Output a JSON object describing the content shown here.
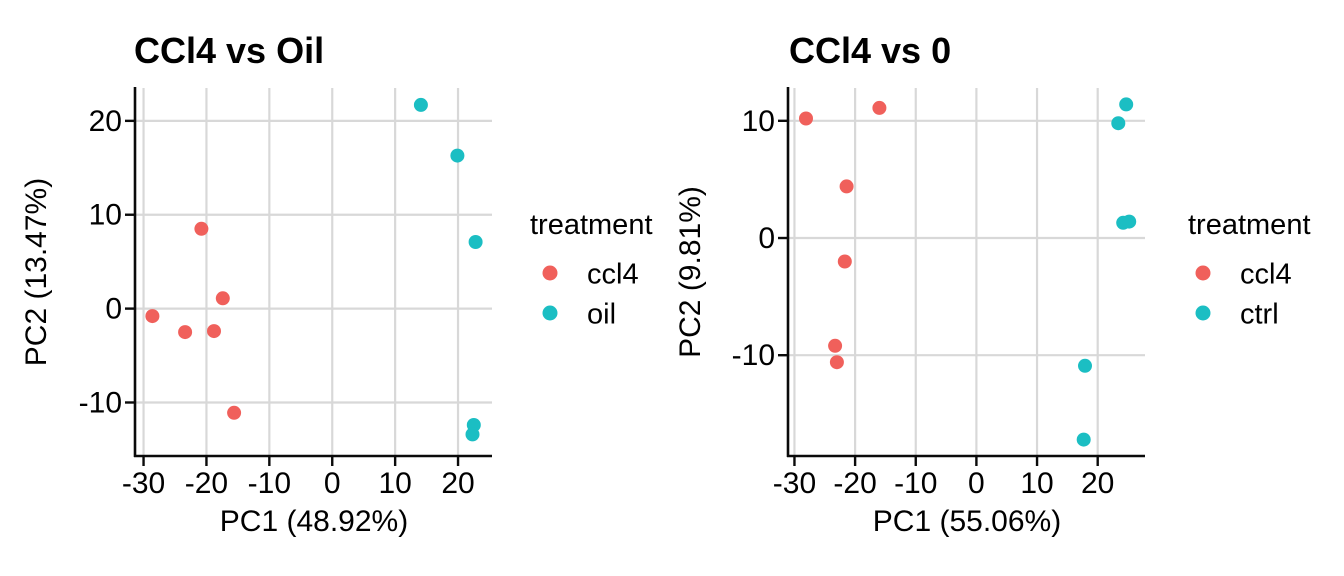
{
  "figure": {
    "background": "#ffffff",
    "description": "Two PCA scatter plots side by side comparing treatment groups"
  },
  "palette": {
    "ccl4": "#F0605B",
    "oil": "#1BBEC3",
    "ctrl": "#1BBEC3",
    "grid": "#D8D8D8",
    "axis": "#0a0a0a",
    "text": "#000000"
  },
  "chart_data": [
    {
      "type": "scatter",
      "title": "CCl4 vs Oil",
      "xlabel": "PC1 (48.92%)",
      "ylabel": "PC2 (13.47%)",
      "xlim": [
        -31.2,
        25.4
      ],
      "ylim": [
        -15.7,
        23.5
      ],
      "xticks": [
        "-30",
        "-20",
        "-10",
        "0",
        "10",
        "20"
      ],
      "yticks": [
        "-10",
        "0",
        "10",
        "20"
      ],
      "xtick_values": [
        -30,
        -20,
        -10,
        0,
        10,
        20
      ],
      "ytick_values": [
        -10,
        0,
        10,
        20
      ],
      "grid": true,
      "legend_position": "right",
      "legend_title": "treatment",
      "series": [
        {
          "name": "ccl4",
          "color": "#F0605B",
          "points": [
            [
              -20.8,
              8.5
            ],
            [
              -17.4,
              1.1
            ],
            [
              -28.6,
              -0.8
            ],
            [
              -23.4,
              -2.5
            ],
            [
              -18.8,
              -2.4
            ],
            [
              -15.6,
              -11.1
            ]
          ]
        },
        {
          "name": "oil",
          "color": "#1BBEC3",
          "points": [
            [
              14.1,
              21.7
            ],
            [
              19.9,
              16.3
            ],
            [
              22.8,
              7.1
            ],
            [
              22.5,
              -12.4
            ],
            [
              22.3,
              -13.4
            ]
          ]
        }
      ]
    },
    {
      "type": "scatter",
      "title": "CCl4 vs 0",
      "xlabel": "PC1 (55.06%)",
      "ylabel": "PC2 (9.81%)",
      "xlim": [
        -30.9,
        27.8
      ],
      "ylim": [
        -18.6,
        12.8
      ],
      "xticks": [
        "-30",
        "-20",
        "-10",
        "0",
        "10",
        "20"
      ],
      "yticks": [
        "-10",
        "0",
        "10"
      ],
      "xtick_values": [
        -30,
        -20,
        -10,
        0,
        10,
        20
      ],
      "ytick_values": [
        -10,
        0,
        10
      ],
      "grid": true,
      "legend_position": "right",
      "legend_title": "treatment",
      "series": [
        {
          "name": "ccl4",
          "color": "#F0605B",
          "points": [
            [
              -28.1,
              10.2
            ],
            [
              -16.0,
              11.1
            ],
            [
              -21.4,
              4.4
            ],
            [
              -21.7,
              -2.0
            ],
            [
              -23.3,
              -9.2
            ],
            [
              -23.0,
              -10.6
            ]
          ]
        },
        {
          "name": "ctrl",
          "color": "#1BBEC3",
          "points": [
            [
              24.7,
              11.4
            ],
            [
              23.4,
              9.8
            ],
            [
              24.2,
              1.3
            ],
            [
              25.2,
              1.4
            ],
            [
              17.9,
              -10.9
            ],
            [
              17.7,
              -17.2
            ]
          ]
        }
      ]
    }
  ]
}
